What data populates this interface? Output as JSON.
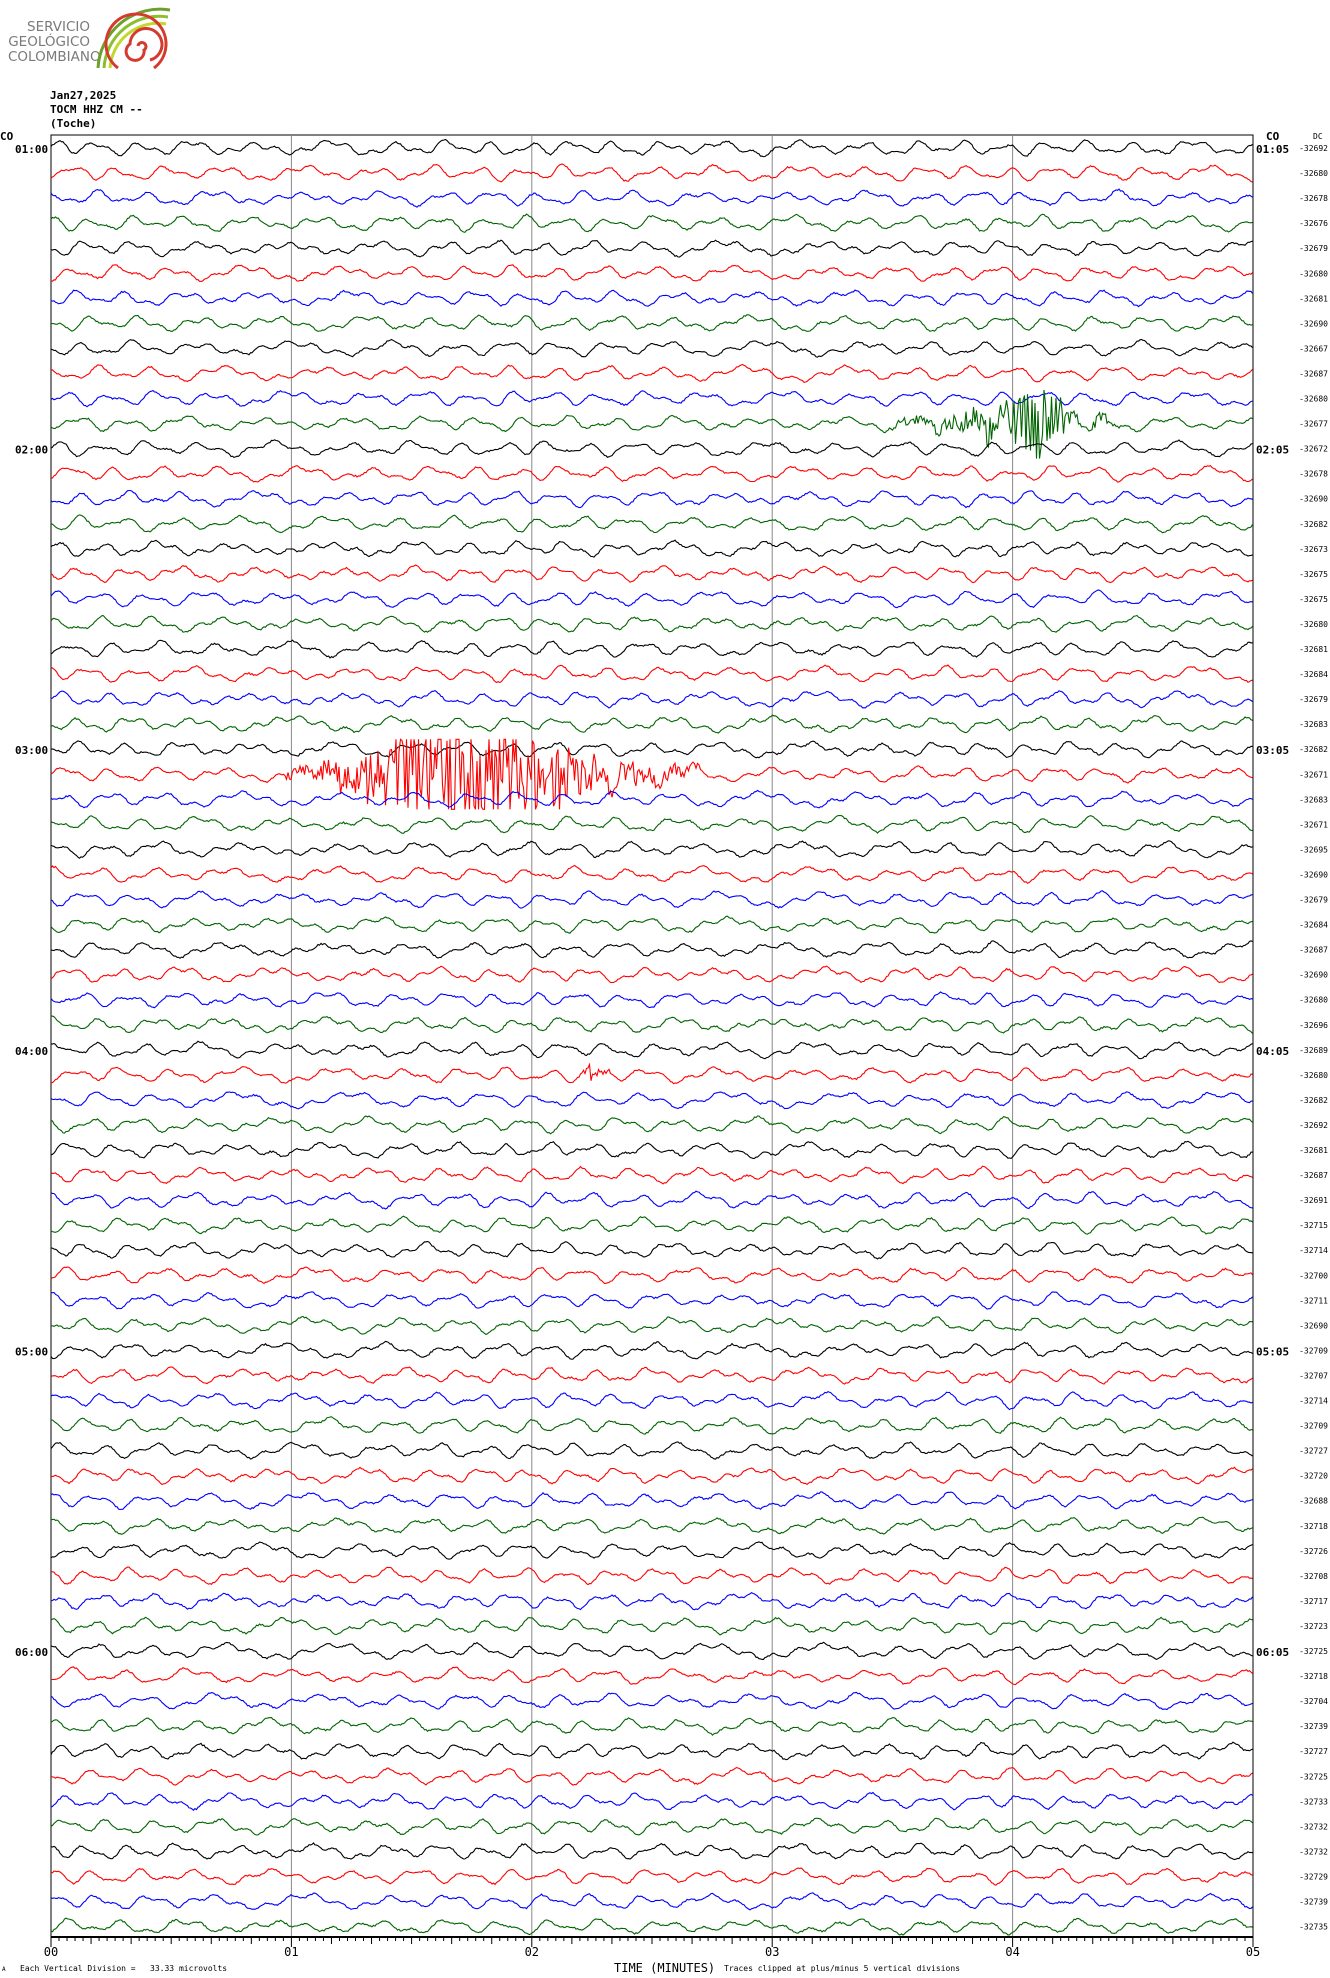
{
  "logo": {
    "lines": [
      "SERVICIO",
      "GEOLÓGICO",
      "COLOMBIANO"
    ]
  },
  "header": {
    "date": "Jan27,2025",
    "channel": "TOCM HHZ CM --",
    "station": "(Toche)"
  },
  "footer": {
    "scale_note": "Each Vertical Division =   33.33 microvolts",
    "xlabel": "TIME (MINUTES)",
    "clip_note": "Traces clipped at plus/minus 5 vertical divisions",
    "corner_mark": "A"
  },
  "chart_data": {
    "type": "line",
    "title": "",
    "xlabel": "TIME (MINUTES)",
    "xlim": [
      0,
      5
    ],
    "x_tick_labels": [
      "00",
      "01",
      "02",
      "03",
      "04",
      "05"
    ],
    "network_label_left": "CO",
    "network_label_right": "CO",
    "dc_header": "DC",
    "trace_colors": [
      "#000000",
      "#ff0000",
      "#0000ff",
      "#006400"
    ],
    "left_time_labels": [
      {
        "trace": 0,
        "label": "01:00"
      },
      {
        "trace": 12,
        "label": "02:00"
      },
      {
        "trace": 24,
        "label": "03:00"
      },
      {
        "trace": 36,
        "label": "04:00"
      },
      {
        "trace": 48,
        "label": "05:00"
      },
      {
        "trace": 60,
        "label": "06:00"
      }
    ],
    "right_time_labels": [
      {
        "trace": 0,
        "label": "01:05"
      },
      {
        "trace": 12,
        "label": "02:05"
      },
      {
        "trace": 24,
        "label": "03:05"
      },
      {
        "trace": 36,
        "label": "04:05"
      },
      {
        "trace": 48,
        "label": "05:05"
      },
      {
        "trace": 60,
        "label": "06:05"
      }
    ],
    "dc_values": [
      -32692,
      -32680,
      -32678,
      -32676,
      -32679,
      -32680,
      -32681,
      -32690,
      -32667,
      -32687,
      -32680,
      -32677,
      -32672,
      -32678,
      -32690,
      -32682,
      -32673,
      -32675,
      -32675,
      -32680,
      -32681,
      -32684,
      -32679,
      -32683,
      -32682,
      -32671,
      -32683,
      -32671,
      -32695,
      -32690,
      -32679,
      -32684,
      -32687,
      -32690,
      -32680,
      -32696,
      -32689,
      -32680,
      -32682,
      -32692,
      -32681,
      -32687,
      -32691,
      -32715,
      -32714,
      -32700,
      -32711,
      -32690,
      -32709,
      -32707,
      -32714,
      -32709,
      -32727,
      -32720,
      -32688,
      -32718,
      -32726,
      -32708,
      -32717,
      -32723,
      -32725,
      -32718,
      -32704,
      -32739,
      -32727,
      -32725,
      -32733,
      -32732,
      -32732,
      -32729,
      -32739,
      -32735
    ],
    "events": [
      {
        "trace": 11,
        "start_min": 3.45,
        "peak_min": 4.13,
        "end_min": 4.45,
        "peak_divisions": 1.0
      },
      {
        "trace": 25,
        "start_min": 0.97,
        "peak_min": 1.66,
        "end_min": 2.7,
        "peak_divisions": 2.5
      },
      {
        "trace": 37,
        "start_min": 2.2,
        "peak_min": 2.25,
        "end_min": 2.35,
        "peak_divisions": 0.3
      }
    ]
  }
}
